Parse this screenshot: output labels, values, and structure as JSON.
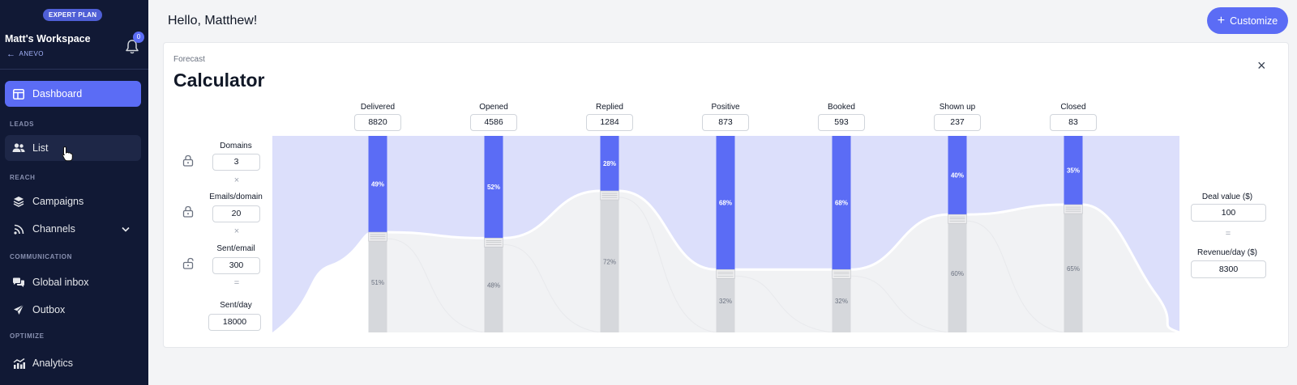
{
  "sidebar": {
    "plan_badge": "EXPERT PLAN",
    "workspace_name": "Matt's Workspace",
    "back_label": "ANEVO",
    "notification_count": "0",
    "items": {
      "dashboard": "Dashboard",
      "list": "List",
      "campaigns": "Campaigns",
      "channels": "Channels",
      "global_inbox": "Global inbox",
      "outbox": "Outbox",
      "analytics": "Analytics"
    },
    "sections": {
      "leads": "LEADS",
      "reach": "REACH",
      "communication": "COMMUNICATION",
      "optimize": "OPTIMIZE"
    },
    "active_item": "dashboard",
    "hovered_item": "list"
  },
  "header": {
    "greeting": "Hello, Matthew!",
    "customize_label": "Customize"
  },
  "calculator": {
    "subtitle": "Forecast",
    "title": "Calculator",
    "close": "×",
    "inputs": {
      "domains": {
        "label": "Domains",
        "value": "3",
        "locked": true
      },
      "emails_per_domain": {
        "label": "Emails/domain",
        "value": "20",
        "locked": true
      },
      "sent_per_email": {
        "label": "Sent/email",
        "value": "300",
        "locked": false
      },
      "sent_per_day": {
        "label": "Sent/day",
        "value": "18000"
      }
    },
    "operators": {
      "times": "×",
      "equals": "="
    },
    "outputs": {
      "deal_value": {
        "label": "Deal value ($)",
        "value": "100"
      },
      "revenue_per_day": {
        "label": "Revenue/day ($)",
        "value": "8300"
      }
    },
    "stages": [
      {
        "name": "Delivered",
        "value": "8820",
        "pass_pct": "49%",
        "drop_pct": "51%",
        "pass": 0.49
      },
      {
        "name": "Opened",
        "value": "4586",
        "pass_pct": "52%",
        "drop_pct": "48%",
        "pass": 0.52
      },
      {
        "name": "Replied",
        "value": "1284",
        "pass_pct": "28%",
        "drop_pct": "72%",
        "pass": 0.28
      },
      {
        "name": "Positive",
        "value": "873",
        "pass_pct": "68%",
        "drop_pct": "32%",
        "pass": 0.68
      },
      {
        "name": "Booked",
        "value": "593",
        "pass_pct": "68%",
        "drop_pct": "32%",
        "pass": 0.68
      },
      {
        "name": "Shown up",
        "value": "237",
        "pass_pct": "40%",
        "drop_pct": "60%",
        "pass": 0.4
      },
      {
        "name": "Closed",
        "value": "83",
        "pass_pct": "35%",
        "drop_pct": "65%",
        "pass": 0.35
      }
    ],
    "colors": {
      "pass": "#5b6cf5",
      "drop": "#d6d8dc",
      "flow": "#dcdffb",
      "flow_drop": "#f1f2f4"
    }
  }
}
